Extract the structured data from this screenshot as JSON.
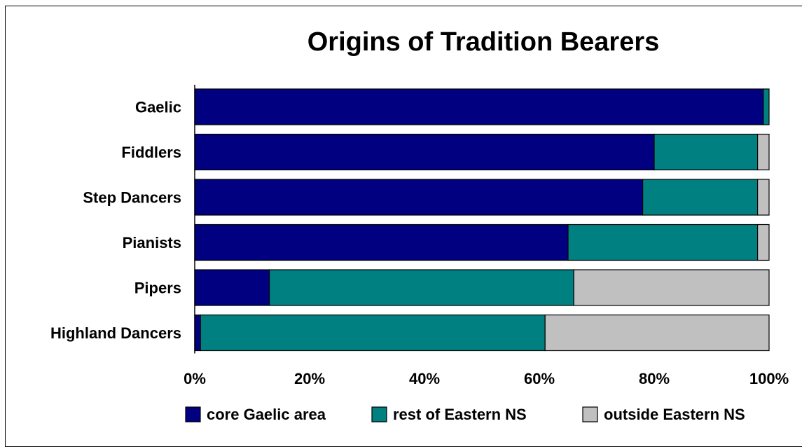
{
  "chart_data": {
    "type": "bar",
    "orientation": "horizontal",
    "stacked": "percent",
    "title": "Origins of Tradition Bearers",
    "xlabel": "",
    "ylabel": "",
    "categories": [
      "Gaelic",
      "Fiddlers",
      "Step Dancers",
      "Pianists",
      "Pipers",
      "Highland Dancers"
    ],
    "series": [
      {
        "name": "core Gaelic area",
        "color": "#000080",
        "values": [
          99,
          80,
          78,
          65,
          13,
          1
        ]
      },
      {
        "name": "rest of Eastern NS",
        "color": "#008080",
        "values": [
          1,
          18,
          20,
          33,
          53,
          60
        ]
      },
      {
        "name": "outside Eastern NS",
        "color": "#C0C0C0",
        "values": [
          0,
          2,
          2,
          2,
          34,
          39
        ]
      }
    ],
    "xlim": [
      0,
      100
    ],
    "xticks": [
      "0%",
      "20%",
      "40%",
      "60%",
      "80%",
      "100%"
    ],
    "grid": false,
    "legend_position": "bottom"
  }
}
